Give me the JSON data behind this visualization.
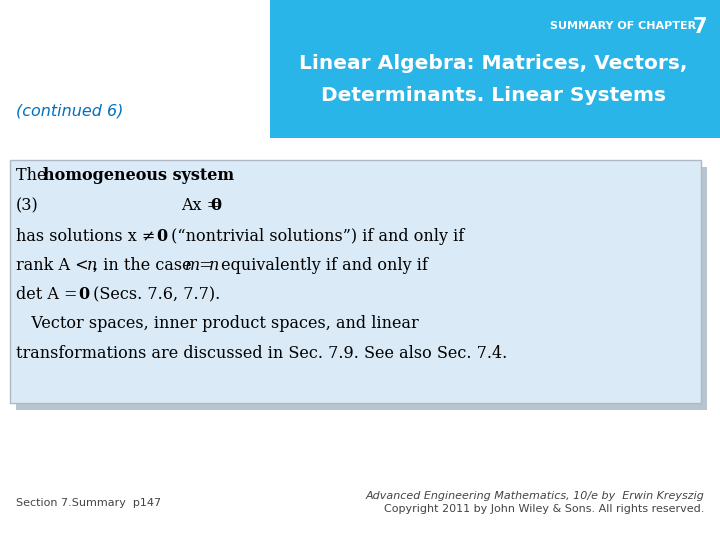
{
  "bg_color": "#ffffff",
  "header_bg_color": "#29b5e8",
  "header_text_color": "#ffffff",
  "continued_color": "#0070c0",
  "box_bg_color": "#daeaf6",
  "box_border_color": "#b0b8c8",
  "shadow_color": "#b8c4d0",
  "text_color": "#000000",
  "footer_color": "#444444",
  "header_summary": "SUMMARY OF CHAPTER ",
  "header_num": "7",
  "header_line2": "Linear Algebra: Matrices, Vectors,",
  "header_line3": "Determinants. Linear Systems",
  "continued": "(continued 6)",
  "footer_left": "Section 7.Summary  p147",
  "footer_right1": "Advanced Engineering Mathematics, 10/e by  Erwin Kreyszig",
  "footer_right2": "Copyright 2011 by John Wiley & Sons. All rights reserved."
}
